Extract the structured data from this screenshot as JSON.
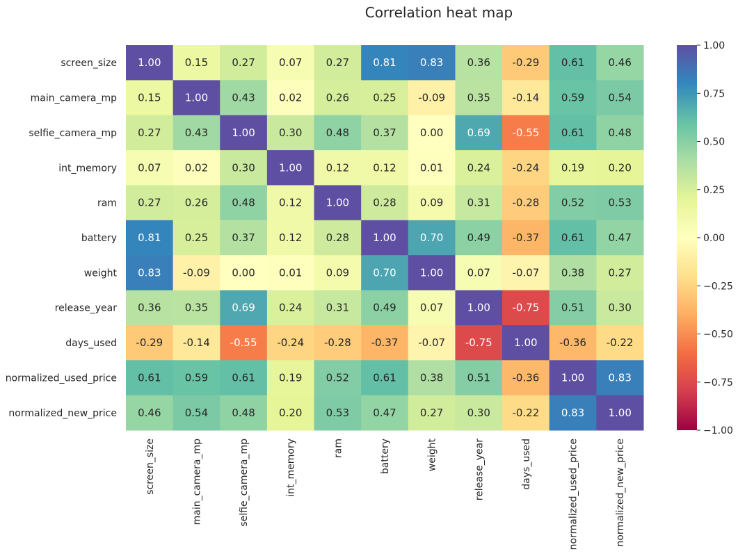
{
  "chart_data": {
    "type": "heatmap",
    "title": "Correlation heat map",
    "variables": [
      "screen_size",
      "main_camera_mp",
      "selfie_camera_mp",
      "int_memory",
      "ram",
      "battery",
      "weight",
      "release_year",
      "days_used",
      "normalized_used_price",
      "normalized_new_price"
    ],
    "values": [
      [
        1.0,
        0.15,
        0.27,
        0.07,
        0.27,
        0.81,
        0.83,
        0.36,
        -0.29,
        0.61,
        0.46
      ],
      [
        0.15,
        1.0,
        0.43,
        0.02,
        0.26,
        0.25,
        -0.09,
        0.35,
        -0.14,
        0.59,
        0.54
      ],
      [
        0.27,
        0.43,
        1.0,
        0.3,
        0.48,
        0.37,
        -0.0,
        0.69,
        -0.55,
        0.61,
        0.48
      ],
      [
        0.07,
        0.02,
        0.3,
        1.0,
        0.12,
        0.12,
        0.01,
        0.24,
        -0.24,
        0.19,
        0.2
      ],
      [
        0.27,
        0.26,
        0.48,
        0.12,
        1.0,
        0.28,
        0.09,
        0.31,
        -0.28,
        0.52,
        0.53
      ],
      [
        0.81,
        0.25,
        0.37,
        0.12,
        0.28,
        1.0,
        0.7,
        0.49,
        -0.37,
        0.61,
        0.47
      ],
      [
        0.83,
        -0.09,
        -0.0,
        0.01,
        0.09,
        0.7,
        1.0,
        0.07,
        -0.07,
        0.38,
        0.27
      ],
      [
        0.36,
        0.35,
        0.69,
        0.24,
        0.31,
        0.49,
        0.07,
        1.0,
        -0.75,
        0.51,
        0.3
      ],
      [
        -0.29,
        -0.14,
        -0.55,
        -0.24,
        -0.28,
        -0.37,
        -0.07,
        -0.75,
        1.0,
        -0.36,
        -0.22
      ],
      [
        0.61,
        0.59,
        0.61,
        0.19,
        0.52,
        0.61,
        0.38,
        0.51,
        -0.36,
        1.0,
        0.83
      ],
      [
        0.46,
        0.54,
        0.48,
        0.2,
        0.53,
        0.47,
        0.27,
        0.3,
        -0.22,
        0.83,
        1.0
      ]
    ],
    "value_range": [
      -1.0,
      1.0
    ],
    "colormap": "Spectral",
    "colorbar_ticks": [
      "1.00",
      "0.75",
      "0.50",
      "0.25",
      "0.00",
      "−0.25",
      "−0.50",
      "−0.75",
      "−1.00"
    ],
    "colorbar_tick_values": [
      1.0,
      0.75,
      0.5,
      0.25,
      0.0,
      -0.25,
      -0.5,
      -0.75,
      -1.0
    ],
    "annotation_format": "2 decimals",
    "colorbar_position": "right"
  }
}
